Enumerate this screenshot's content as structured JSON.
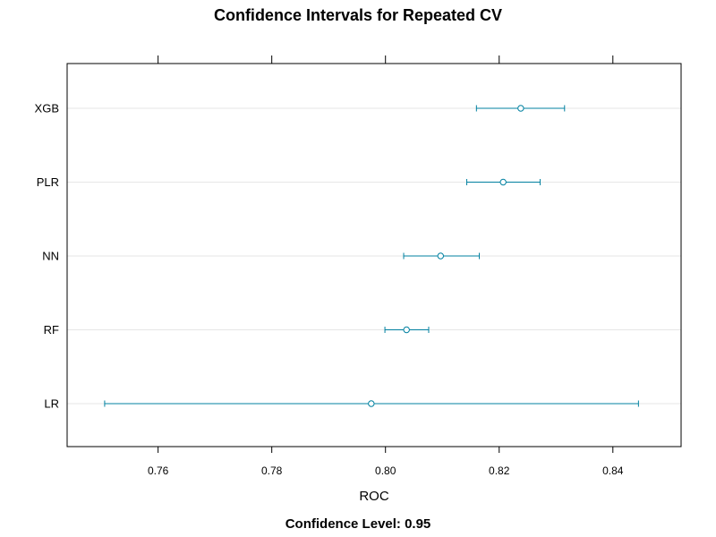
{
  "chart_data": {
    "type": "dotplot",
    "title": "Confidence Intervals for Repeated CV",
    "subtitle": "Confidence Level: 0.95",
    "xlabel": "ROC",
    "ylabel": "",
    "xlim": [
      0.744,
      0.852
    ],
    "xticks": [
      "0.76",
      "0.78",
      "0.80",
      "0.82",
      "0.84"
    ],
    "grid": "horizontal",
    "series_color": "#0080a0",
    "categories": [
      "XGB",
      "PLR",
      "NN",
      "RF",
      "LR"
    ],
    "points": [
      {
        "model": "XGB",
        "estimate": 0.8238,
        "lower": 0.816,
        "upper": 0.8315
      },
      {
        "model": "PLR",
        "estimate": 0.8207,
        "lower": 0.8143,
        "upper": 0.8272
      },
      {
        "model": "NN",
        "estimate": 0.8097,
        "lower": 0.8032,
        "upper": 0.8165
      },
      {
        "model": "RF",
        "estimate": 0.8037,
        "lower": 0.7999,
        "upper": 0.8076
      },
      {
        "model": "LR",
        "estimate": 0.7975,
        "lower": 0.7506,
        "upper": 0.8445
      }
    ]
  }
}
